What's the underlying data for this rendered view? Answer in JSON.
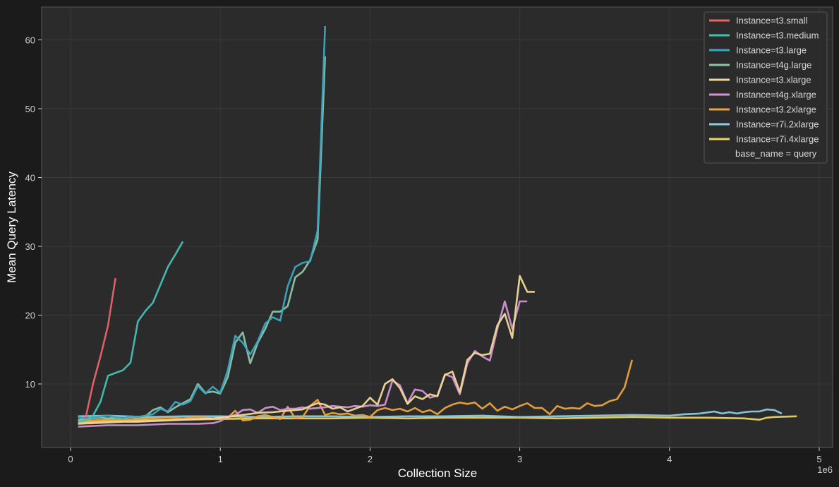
{
  "chart_data": {
    "type": "line",
    "title": "",
    "xlabel": "Collection Size",
    "ylabel": "Mean Query Latency",
    "x_offset_label": "1e6",
    "xlim": [
      -0.2,
      5.1
    ],
    "ylim": [
      0.8,
      65.6
    ],
    "xticks": [
      0,
      1,
      2,
      3,
      4,
      5
    ],
    "yticks": [
      10,
      20,
      30,
      40,
      50,
      60
    ],
    "grid": true,
    "legend_position": "upper right",
    "legend_title_row": "base_name = query",
    "x_units": "millions (1e6)",
    "series": [
      {
        "name": "Instance=t3.small",
        "color": "#e5646a",
        "x": [
          0.1,
          0.15,
          0.2,
          0.25,
          0.3
        ],
        "y": [
          5.0,
          10.0,
          14.0,
          18.5,
          25.4
        ]
      },
      {
        "name": "Instance=t3.medium",
        "color": "#44bfb5",
        "x": [
          0.05,
          0.1,
          0.15,
          0.2,
          0.25,
          0.3,
          0.35,
          0.4,
          0.45,
          0.5,
          0.55,
          0.6,
          0.65,
          0.7,
          0.75
        ],
        "y": [
          4.5,
          4.7,
          5.4,
          7.4,
          11.2,
          11.6,
          12.0,
          13.1,
          19.1,
          20.6,
          21.8,
          24.4,
          27.0,
          28.8,
          30.7
        ]
      },
      {
        "name": "Instance=t3.large",
        "color": "#3aa6c2",
        "x": [
          0.05,
          0.1,
          0.15,
          0.2,
          0.25,
          0.3,
          0.35,
          0.4,
          0.45,
          0.5,
          0.55,
          0.6,
          0.65,
          0.7,
          0.75,
          0.8,
          0.85,
          0.9,
          0.95,
          1.0,
          1.05,
          1.1,
          1.15,
          1.2,
          1.25,
          1.3,
          1.35,
          1.4,
          1.45,
          1.5,
          1.55,
          1.6,
          1.65,
          1.7
        ],
        "y": [
          5.2,
          5.0,
          5.1,
          5.3,
          5.4,
          5.2,
          5.0,
          5.3,
          5.2,
          5.4,
          5.6,
          6.4,
          6.0,
          7.4,
          7.0,
          7.5,
          9.7,
          8.6,
          9.6,
          8.7,
          12.0,
          17.0,
          16.0,
          14.3,
          16.2,
          18.8,
          19.7,
          19.2,
          24.2,
          27.0,
          27.6,
          27.8,
          32.3,
          62.0
        ]
      },
      {
        "name": "Instance=t4g.large",
        "color": "#8ec5a8",
        "x": [
          0.05,
          0.1,
          0.15,
          0.2,
          0.25,
          0.3,
          0.35,
          0.4,
          0.45,
          0.5,
          0.55,
          0.6,
          0.65,
          0.7,
          0.75,
          0.8,
          0.85,
          0.9,
          0.95,
          1.0,
          1.05,
          1.1,
          1.15,
          1.2,
          1.25,
          1.3,
          1.35,
          1.4,
          1.45,
          1.5,
          1.55,
          1.6,
          1.65,
          1.7
        ],
        "y": [
          4.8,
          4.9,
          5.0,
          5.1,
          5.0,
          5.1,
          5.0,
          5.2,
          5.1,
          5.3,
          6.2,
          6.6,
          5.9,
          6.6,
          7.2,
          7.8,
          10.0,
          8.7,
          8.9,
          8.6,
          11.0,
          16.0,
          17.5,
          13.0,
          16.0,
          18.0,
          20.5,
          20.5,
          21.3,
          25.5,
          26.3,
          28.0,
          31.0,
          57.6
        ]
      },
      {
        "name": "Instance=t3.xlarge",
        "color": "#f0d898",
        "x": [
          0.05,
          0.15,
          0.25,
          0.35,
          0.45,
          0.55,
          0.65,
          0.75,
          0.85,
          0.95,
          1.05,
          1.15,
          1.25,
          1.35,
          1.45,
          1.55,
          1.6,
          1.65,
          1.7,
          1.75,
          1.8,
          1.85,
          1.9,
          1.95,
          2.0,
          2.05,
          2.1,
          2.15,
          2.2,
          2.25,
          2.3,
          2.35,
          2.4,
          2.45,
          2.5,
          2.55,
          2.6,
          2.65,
          2.7,
          2.75,
          2.8,
          2.85,
          2.9,
          2.95,
          3.0,
          3.05,
          3.1
        ],
        "y": [
          4.2,
          4.3,
          4.4,
          4.5,
          4.5,
          4.6,
          4.7,
          4.8,
          4.9,
          5.0,
          5.2,
          5.5,
          5.8,
          5.9,
          6.1,
          6.3,
          6.8,
          7.2,
          7.0,
          6.4,
          6.6,
          6.0,
          6.4,
          6.8,
          8.0,
          7.0,
          10.0,
          10.7,
          9.4,
          7.1,
          8.2,
          7.8,
          8.5,
          8.2,
          11.3,
          11.8,
          8.8,
          13.5,
          14.5,
          14.2,
          14.4,
          18.5,
          20.2,
          16.7,
          25.7,
          23.4,
          23.4
        ]
      },
      {
        "name": "Instance=t4g.xlarge",
        "color": "#d393d3",
        "x": [
          0.05,
          0.15,
          0.25,
          0.35,
          0.45,
          0.55,
          0.65,
          0.75,
          0.85,
          0.95,
          1.0,
          1.05,
          1.1,
          1.15,
          1.2,
          1.25,
          1.3,
          1.35,
          1.4,
          1.45,
          1.5,
          1.55,
          1.6,
          1.65,
          1.7,
          1.75,
          1.8,
          1.85,
          1.9,
          1.95,
          2.0,
          2.05,
          2.1,
          2.15,
          2.2,
          2.25,
          2.3,
          2.35,
          2.4,
          2.45,
          2.5,
          2.55,
          2.6,
          2.65,
          2.7,
          2.75,
          2.8,
          2.85,
          2.9,
          2.95,
          3.0,
          3.05
        ],
        "y": [
          3.8,
          3.9,
          4.0,
          4.0,
          4.0,
          4.1,
          4.2,
          4.2,
          4.2,
          4.3,
          4.6,
          5.2,
          5.5,
          6.2,
          6.3,
          5.8,
          6.5,
          6.7,
          6.2,
          6.4,
          6.4,
          6.6,
          6.4,
          6.5,
          6.6,
          6.8,
          6.7,
          6.6,
          6.8,
          6.7,
          6.9,
          6.8,
          7.0,
          10.5,
          9.8,
          7.2,
          9.2,
          9.0,
          8.0,
          8.3,
          11.4,
          11.0,
          8.5,
          13.0,
          14.8,
          14.0,
          13.4,
          18.0,
          22.0,
          18.0,
          22.0,
          22.0
        ]
      },
      {
        "name": "Instance=t3.2xlarge",
        "color": "#eda23c",
        "x": [
          0.05,
          0.15,
          0.25,
          0.35,
          0.45,
          0.55,
          0.65,
          0.75,
          0.85,
          0.95,
          1.05,
          1.1,
          1.15,
          1.2,
          1.25,
          1.3,
          1.35,
          1.4,
          1.45,
          1.5,
          1.55,
          1.6,
          1.65,
          1.7,
          1.75,
          1.8,
          1.85,
          1.9,
          1.95,
          2.0,
          2.05,
          2.1,
          2.15,
          2.2,
          2.25,
          2.3,
          2.35,
          2.4,
          2.45,
          2.5,
          2.55,
          2.6,
          2.65,
          2.7,
          2.75,
          2.8,
          2.85,
          2.9,
          2.95,
          3.0,
          3.05,
          3.1,
          3.15,
          3.2,
          3.25,
          3.3,
          3.35,
          3.4,
          3.45,
          3.5,
          3.55,
          3.6,
          3.65,
          3.7,
          3.75
        ],
        "y": [
          4.6,
          4.7,
          4.8,
          4.8,
          4.9,
          5.0,
          5.1,
          5.0,
          5.2,
          5.0,
          5.1,
          6.1,
          4.7,
          4.8,
          5.3,
          5.5,
          5.2,
          4.9,
          6.7,
          5.0,
          5.2,
          6.8,
          7.7,
          5.5,
          5.8,
          5.6,
          5.7,
          5.4,
          5.5,
          5.2,
          6.2,
          6.5,
          6.2,
          6.4,
          6.0,
          6.5,
          5.9,
          6.2,
          5.6,
          6.5,
          7.0,
          7.3,
          7.1,
          7.3,
          6.4,
          7.2,
          6.1,
          6.7,
          6.3,
          6.8,
          7.2,
          6.5,
          6.5,
          5.6,
          6.8,
          6.4,
          6.5,
          6.4,
          7.2,
          6.8,
          6.9,
          7.5,
          7.8,
          9.5,
          13.5
        ]
      },
      {
        "name": "Instance=r7i.2xlarge",
        "color": "#8ccbe0",
        "x": [
          0.05,
          0.25,
          0.5,
          0.75,
          1.0,
          1.25,
          1.5,
          1.75,
          2.0,
          2.25,
          2.5,
          2.75,
          3.0,
          3.25,
          3.5,
          3.75,
          4.0,
          4.1,
          4.2,
          4.3,
          4.35,
          4.4,
          4.45,
          4.5,
          4.55,
          4.6,
          4.65,
          4.7,
          4.75
        ],
        "y": [
          5.3,
          5.4,
          5.2,
          5.3,
          5.3,
          5.2,
          5.3,
          5.3,
          5.2,
          5.3,
          5.3,
          5.4,
          5.2,
          5.3,
          5.4,
          5.5,
          5.4,
          5.6,
          5.7,
          6.0,
          5.7,
          5.9,
          5.7,
          5.9,
          6.0,
          6.0,
          6.3,
          6.2,
          5.7
        ]
      },
      {
        "name": "Instance=r7i.4xlarge",
        "color": "#ecd163",
        "x": [
          0.05,
          0.25,
          0.5,
          0.75,
          1.0,
          1.25,
          1.5,
          1.75,
          2.0,
          2.25,
          2.5,
          2.75,
          3.0,
          3.25,
          3.5,
          3.75,
          4.0,
          4.25,
          4.5,
          4.6,
          4.65,
          4.7,
          4.85
        ],
        "y": [
          4.4,
          4.6,
          4.7,
          4.8,
          4.9,
          5.0,
          5.0,
          5.0,
          5.1,
          5.0,
          5.1,
          5.1,
          5.1,
          5.0,
          5.1,
          5.2,
          5.1,
          5.1,
          5.0,
          4.8,
          5.1,
          5.2,
          5.3
        ]
      }
    ]
  }
}
